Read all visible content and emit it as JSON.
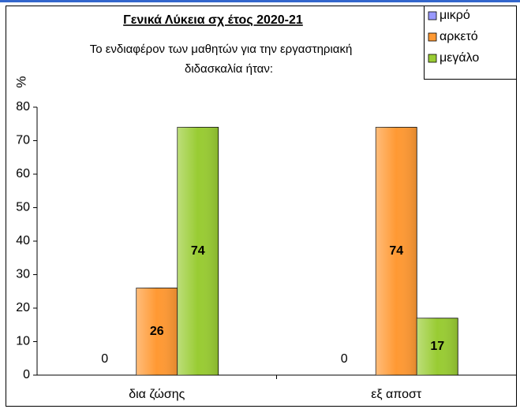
{
  "chart_data": {
    "type": "bar",
    "title": "Γενικά Λύκεια σχ έτος 2020-21",
    "subtitle": [
      "Το ενδιαφέρον των μαθητών για την εργαστηριακή",
      "διδασκαλία ήταν:"
    ],
    "y_label": "%",
    "categories": [
      "δια ζώσης",
      "εξ αποστ"
    ],
    "series": [
      {
        "name": "μικρό",
        "color": "#9999ff",
        "values": [
          0,
          0
        ]
      },
      {
        "name": "αρκετό",
        "color": "#ff9933",
        "values": [
          26,
          74
        ]
      },
      {
        "name": "μεγάλο",
        "color": "#99cc33",
        "values": [
          74,
          17
        ]
      }
    ],
    "ylim": [
      0,
      80
    ],
    "yticks": [
      0,
      10,
      20,
      30,
      40,
      50,
      60,
      70,
      80
    ],
    "grid": false,
    "legend": "top-right",
    "data_labels": true
  }
}
